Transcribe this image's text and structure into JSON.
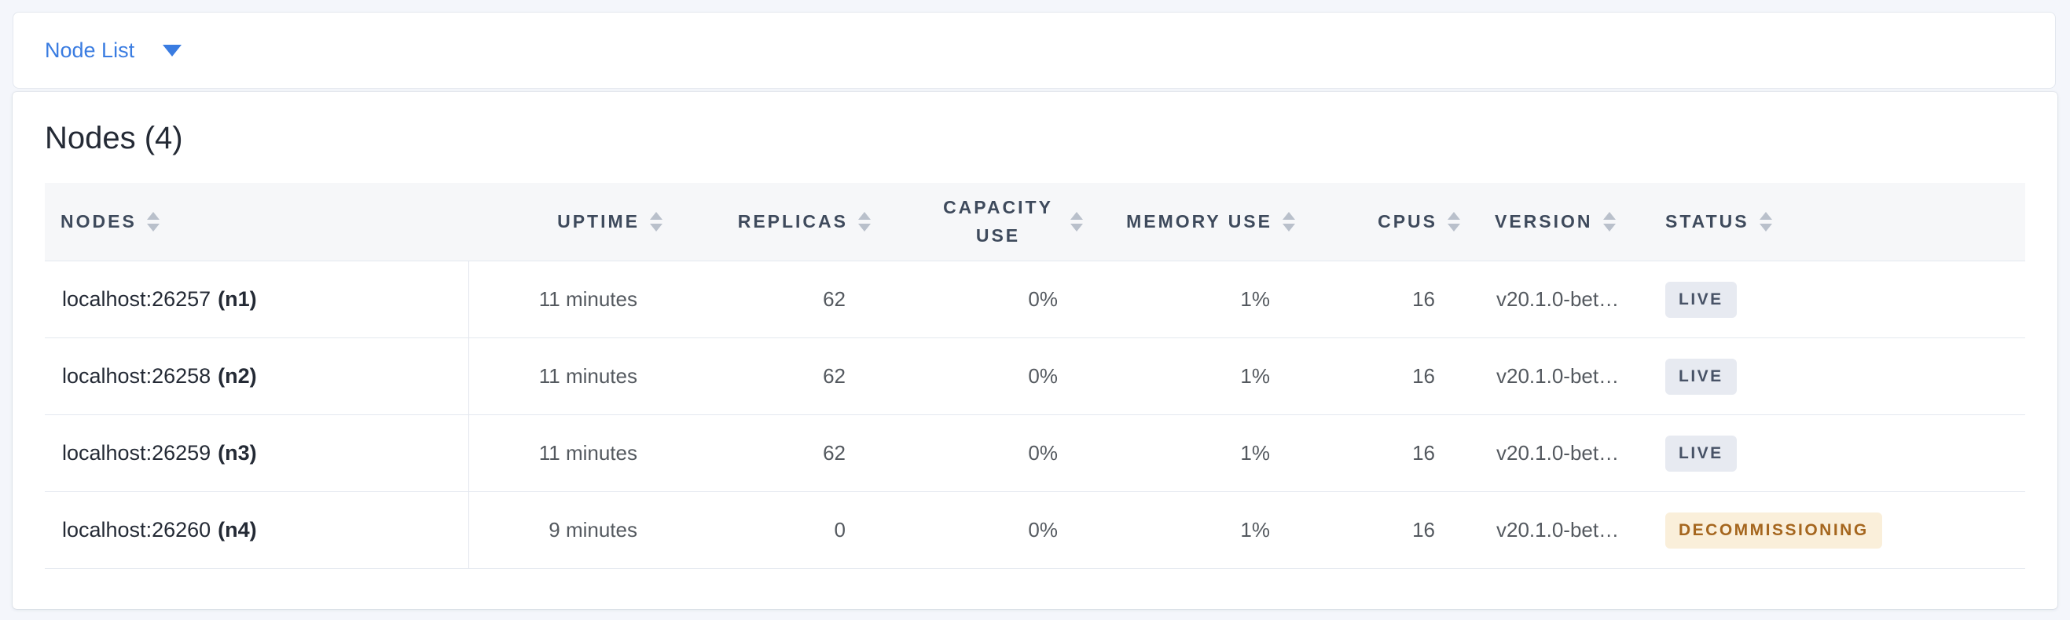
{
  "view_selector": {
    "label": "Node List"
  },
  "summary": {
    "title": "Nodes (4)"
  },
  "table": {
    "columns": [
      {
        "label": "NODES"
      },
      {
        "label": "UPTIME"
      },
      {
        "label": "REPLICAS"
      },
      {
        "label": "CAPACITY USE"
      },
      {
        "label": "MEMORY USE"
      },
      {
        "label": "CPUS"
      },
      {
        "label": "VERSION"
      },
      {
        "label": "STATUS"
      }
    ],
    "rows": [
      {
        "address": "localhost:26257",
        "id": "(n1)",
        "uptime": "11 minutes",
        "replicas": "62",
        "capacity_use": "0%",
        "memory_use": "1%",
        "cpus": "16",
        "version": "v20.1.0-bet…",
        "status": "LIVE"
      },
      {
        "address": "localhost:26258",
        "id": "(n2)",
        "uptime": "11 minutes",
        "replicas": "62",
        "capacity_use": "0%",
        "memory_use": "1%",
        "cpus": "16",
        "version": "v20.1.0-bet…",
        "status": "LIVE"
      },
      {
        "address": "localhost:26259",
        "id": "(n3)",
        "uptime": "11 minutes",
        "replicas": "62",
        "capacity_use": "0%",
        "memory_use": "1%",
        "cpus": "16",
        "version": "v20.1.0-bet…",
        "status": "LIVE"
      },
      {
        "address": "localhost:26260",
        "id": "(n4)",
        "uptime": "9 minutes",
        "replicas": "0",
        "capacity_use": "0%",
        "memory_use": "1%",
        "cpus": "16",
        "version": "v20.1.0-bet…",
        "status": "DECOMMISSIONING"
      }
    ]
  },
  "colors": {
    "page_background": "#F4F6FB",
    "accent_blue": "#3A7CE1",
    "header_background": "#F6F7F9",
    "header_text": "#3E4A5C",
    "row_border": "#E4E8EF",
    "cell_text": "#54595F",
    "node_text": "#242A35",
    "badge_live_bg": "#E7EAF1",
    "badge_live_text": "#475266",
    "badge_decommissioning_bg": "#FAEFDA",
    "badge_decommissioning_text": "#A5661E"
  }
}
